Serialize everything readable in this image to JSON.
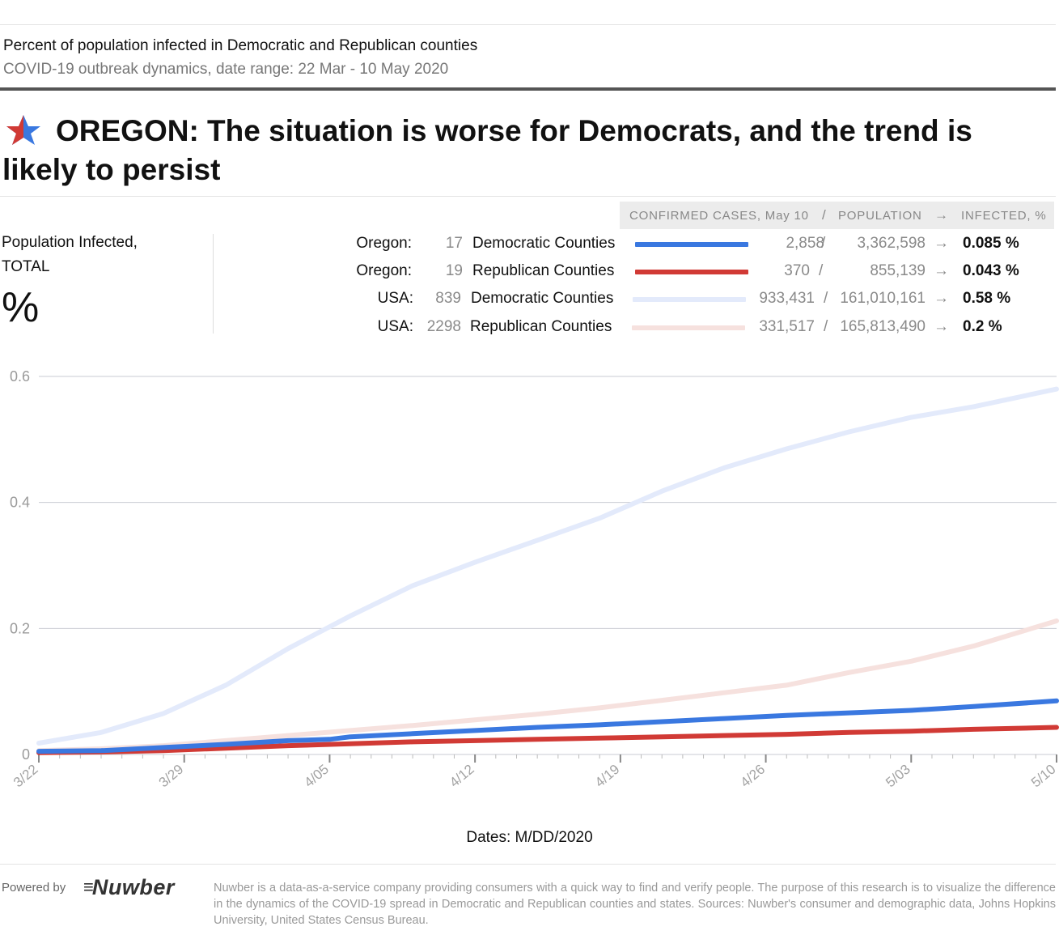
{
  "header": {
    "title": "Percent of population infected in Democratic and Republican counties",
    "subtitle": "COVID-19 outbreak dynamics, date range: 22 Mar - 10 May 2020"
  },
  "headline": "OREGON: The situation is worse for Democrats, and the trend is likely to persist",
  "yaxis_label": {
    "line1": "Population Infected,",
    "line2": "TOTAL",
    "unit": "%"
  },
  "legend": {
    "header": {
      "cases": "CONFIRMED CASES, May 10",
      "sep1": "/",
      "population": "POPULATION",
      "arrow": "→",
      "infected": "INFECTED, %"
    },
    "rows": [
      {
        "region": "Oregon:",
        "count": "17",
        "label": "Democratic Counties",
        "color": "#3a78e0",
        "cases": "2,858",
        "slash": "/",
        "population": "3,362,598",
        "arrow": "→",
        "pct": "0.085 %"
      },
      {
        "region": "Oregon:",
        "count": "19",
        "label": "Republican Counties",
        "color": "#d13a35",
        "cases": "370",
        "slash": "/",
        "population": "855,139",
        "arrow": "→",
        "pct": "0.043 %"
      },
      {
        "region": "USA:",
        "count": "839",
        "label": "Democratic Counties",
        "color": "#e3eafb",
        "cases": "933,431",
        "slash": "/",
        "population": "161,010,161",
        "arrow": "→",
        "pct": "0.58 %"
      },
      {
        "region": "USA:",
        "count": "2298",
        "label": "Republican Counties",
        "color": "#f6e1de",
        "cases": "331,517",
        "slash": "/",
        "population": "165,813,490",
        "arrow": "→",
        "pct": "0.2 %"
      }
    ]
  },
  "xaxis_title": "Dates: M/DD/2020",
  "footer": {
    "powered_by": "Powered by",
    "logo": "Nuwber",
    "note": "Nuwber is a data-as-a-service company providing consumers with a quick way to find and verify people. The purpose of this research is to visualize the difference in the dynamics of the COVID-19 spread in Democratic and Republican counties and states. Sources: Nuwber's consumer and demographic data, Johns Hopkins University, United States Census Bureau."
  },
  "chart_data": {
    "type": "line",
    "title": "Percent of population infected in Democratic and Republican counties",
    "xlabel": "Dates: M/DD/2020",
    "ylabel": "Population Infected, TOTAL %",
    "ylim": [
      0,
      0.6
    ],
    "yticks": [
      0,
      0.2,
      0.4,
      0.6
    ],
    "ytick_labels": [
      "0",
      "0.2",
      "0.4",
      "0.6"
    ],
    "xlim": [
      0,
      49
    ],
    "xticks": [
      0,
      7,
      14,
      21,
      28,
      35,
      42,
      49
    ],
    "xtick_labels": [
      "3/22",
      "3/29",
      "4/05",
      "4/12",
      "4/19",
      "4/26",
      "5/03",
      "5/10"
    ],
    "grid": "horizontal",
    "series": [
      {
        "name": "USA: 2298 Republican Counties",
        "color": "#f6e1de",
        "width": 6,
        "x": [
          0,
          3,
          6,
          9,
          12,
          15,
          18,
          21,
          24,
          27,
          30,
          33,
          36,
          39,
          42,
          45,
          49
        ],
        "y": [
          0.006,
          0.009,
          0.014,
          0.022,
          0.03,
          0.038,
          0.046,
          0.055,
          0.064,
          0.074,
          0.086,
          0.098,
          0.11,
          0.13,
          0.148,
          0.172,
          0.212
        ]
      },
      {
        "name": "USA: 839 Democratic Counties",
        "color": "#e3eafb",
        "width": 6,
        "x": [
          0,
          3,
          6,
          9,
          12,
          15,
          18,
          21,
          24,
          27,
          30,
          33,
          36,
          39,
          42,
          45,
          49
        ],
        "y": [
          0.018,
          0.035,
          0.065,
          0.11,
          0.168,
          0.22,
          0.268,
          0.305,
          0.34,
          0.375,
          0.418,
          0.455,
          0.485,
          0.512,
          0.535,
          0.552,
          0.58
        ]
      },
      {
        "name": "Oregon: 19 Republican Counties",
        "color": "#d13a35",
        "width": 6,
        "x": [
          0,
          3,
          6,
          9,
          12,
          15,
          18,
          21,
          24,
          27,
          30,
          33,
          36,
          39,
          42,
          45,
          49
        ],
        "y": [
          0.003,
          0.004,
          0.006,
          0.01,
          0.014,
          0.017,
          0.02,
          0.022,
          0.024,
          0.026,
          0.028,
          0.03,
          0.032,
          0.035,
          0.037,
          0.04,
          0.043
        ]
      },
      {
        "name": "Oregon: 17 Democratic Counties",
        "color": "#3a78e0",
        "width": 6,
        "x": [
          0,
          3,
          6,
          9,
          12,
          14,
          15,
          18,
          21,
          24,
          27,
          30,
          33,
          36,
          39,
          42,
          45,
          49
        ],
        "y": [
          0.005,
          0.006,
          0.011,
          0.016,
          0.022,
          0.024,
          0.028,
          0.033,
          0.038,
          0.043,
          0.047,
          0.052,
          0.057,
          0.062,
          0.066,
          0.07,
          0.076,
          0.085
        ]
      }
    ]
  }
}
